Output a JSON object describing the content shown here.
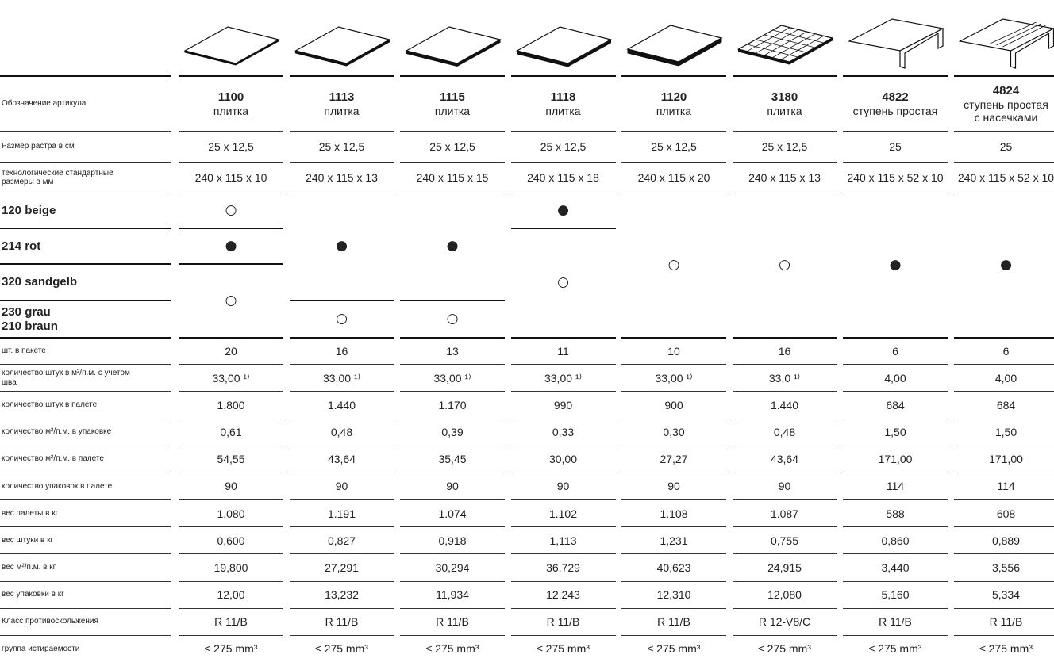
{
  "article_label": "Обозначение артикула",
  "products": [
    {
      "code": "1100",
      "name": [
        "плитка"
      ]
    },
    {
      "code": "1113",
      "name": [
        "плитка"
      ]
    },
    {
      "code": "1115",
      "name": [
        "плитка"
      ]
    },
    {
      "code": "1118",
      "name": [
        "плитка"
      ]
    },
    {
      "code": "1120",
      "name": [
        "плитка"
      ]
    },
    {
      "code": "3180",
      "name": [
        "плитка"
      ]
    },
    {
      "code": "4822",
      "name": [
        "ступень простая"
      ]
    },
    {
      "code": "4824",
      "name": [
        "ступень простая",
        "с насечками"
      ]
    }
  ],
  "spec_rows": [
    {
      "label": "Размер растра в см",
      "values": [
        "25 x 12,5",
        "25 x 12,5",
        "25 x 12,5",
        "25 x 12,5",
        "25 x 12,5",
        "25 x 12,5",
        "25",
        "25"
      ]
    },
    {
      "label": "технологические стандартные размеры в мм",
      "values": [
        "240 x 115 x 10",
        "240 x 115 x 13",
        "240 x 115 x 15",
        "240 x 115 x 18",
        "240 x 115 x 20",
        "240 x 115 x 13",
        "240 x 115 x 52 x 10",
        "240 x 115 x 52 x 10"
      ]
    }
  ],
  "color_rows": [
    [
      "120 beige"
    ],
    [
      "214 rot"
    ],
    [
      "320 sandgelb"
    ],
    [
      "230 grau",
      "210 braun"
    ]
  ],
  "color_marks": [
    [
      {
        "mark": "○"
      },
      {
        "mark": "●"
      },
      {
        "mark": "○",
        "span": 2
      }
    ],
    [
      {
        "mark": "●",
        "span": 3
      },
      {
        "mark": "○"
      }
    ],
    [
      {
        "mark": "●",
        "span": 3
      },
      {
        "mark": "○"
      }
    ],
    [
      {
        "mark": "●"
      },
      {
        "mark": "○",
        "span": 3
      }
    ],
    [
      {
        "mark": "○",
        "span": 4
      }
    ],
    [
      {
        "mark": "○",
        "span": 4
      }
    ],
    [
      {
        "mark": "●",
        "span": 4
      }
    ],
    [
      {
        "mark": "●",
        "span": 4
      }
    ]
  ],
  "pack_rows": [
    {
      "label": "шт. в пакете",
      "values": [
        "20",
        "16",
        "13",
        "11",
        "10",
        "16",
        "6",
        "6"
      ]
    },
    {
      "label": "количество штук в м²/п.м. с учетом шва",
      "values": [
        "33,00 ¹⁾",
        "33,00 ¹⁾",
        "33,00 ¹⁾",
        "33,00 ¹⁾",
        "33,00 ¹⁾",
        "33,0 ¹⁾",
        "4,00",
        "4,00"
      ]
    },
    {
      "label": "количество штук в палете",
      "values": [
        "1.800",
        "1.440",
        "1.170",
        "990",
        "900",
        "1.440",
        "684",
        "684"
      ]
    },
    {
      "label": "количество м²/п.м. в упаковке",
      "values": [
        "0,61",
        "0,48",
        "0,39",
        "0,33",
        "0,30",
        "0,48",
        "1,50",
        "1,50"
      ]
    },
    {
      "label": "количество м²/п.м. в палете",
      "values": [
        "54,55",
        "43,64",
        "35,45",
        "30,00",
        "27,27",
        "43,64",
        "171,00",
        "171,00"
      ]
    },
    {
      "label": "количество упаковок в палете",
      "values": [
        "90",
        "90",
        "90",
        "90",
        "90",
        "90",
        "114",
        "114"
      ]
    },
    {
      "label": "вес палеты в кг",
      "values": [
        "1.080",
        "1.191",
        "1.074",
        "1.102",
        "1.108",
        "1.087",
        "588",
        "608"
      ]
    },
    {
      "label": "вес штуки в кг",
      "values": [
        "0,600",
        "0,827",
        "0,918",
        "1,113",
        "1,231",
        "0,755",
        "0,860",
        "0,889"
      ]
    },
    {
      "label": "вес м²/п.м.  в кг",
      "values": [
        "19,800",
        "27,291",
        "30,294",
        "36,729",
        "40,623",
        "24,915",
        "3,440",
        "3,556"
      ]
    },
    {
      "label": "вес упаковки в кг",
      "values": [
        "12,00",
        "13,232",
        "11,934",
        "12,243",
        "12,310",
        "12,080",
        "5,160",
        "5,334"
      ]
    },
    {
      "label": "Класс противоскольжения",
      "values": [
        "R 11/B",
        "R 11/B",
        "R 11/B",
        "R 11/B",
        "R 11/B",
        "R 12-V8/C",
        "R 11/B",
        "R 11/B"
      ]
    },
    {
      "label": "группа истираемости",
      "values": [
        "≤ 275 mm³",
        "≤ 275 mm³",
        "≤ 275 mm³",
        "≤ 275 mm³",
        "≤ 275 mm³",
        "≤ 275 mm³",
        "≤ 275 mm³",
        "≤ 275 mm³"
      ]
    }
  ]
}
